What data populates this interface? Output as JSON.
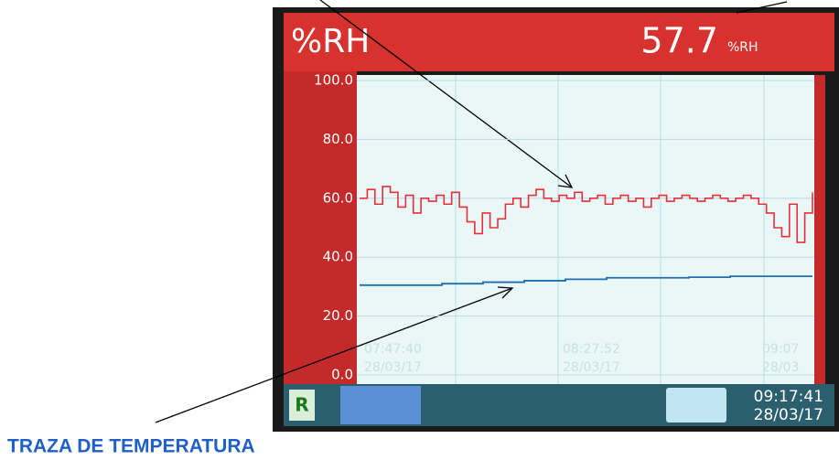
{
  "chart_data": {
    "type": "line",
    "title": "%RH",
    "current_value": 57.7,
    "unit": "%RH",
    "ylim": [
      0,
      100
    ],
    "yticks": [
      {
        "value": 0,
        "label": "0.0"
      },
      {
        "value": 20,
        "label": "20.0"
      },
      {
        "value": 40,
        "label": "40.0"
      },
      {
        "value": 60,
        "label": "60.0"
      },
      {
        "value": 80,
        "label": "80.0"
      },
      {
        "value": 100,
        "label": "100.0"
      }
    ],
    "grid": true,
    "x_labels": [
      {
        "time": "07:47:40",
        "date": "28/03/17"
      },
      {
        "time": "08:27:52",
        "date": "28/03/17"
      },
      {
        "time": "09:07",
        "date": "28/03"
      }
    ],
    "series": [
      {
        "color": "#e8303a",
        "values": [
          60,
          63,
          58,
          64,
          62,
          57,
          61,
          55,
          60,
          59,
          61,
          58,
          62,
          57,
          52,
          48,
          55,
          50,
          53,
          58,
          60,
          57,
          61,
          63,
          60,
          59,
          61,
          60,
          62,
          59,
          60,
          61,
          58,
          60,
          61,
          59,
          60,
          57,
          60,
          61,
          59,
          60,
          61,
          60,
          59,
          60,
          61,
          60,
          59,
          60,
          61,
          60,
          58,
          55,
          50,
          47,
          58,
          45,
          55,
          62
        ]
      },
      {
        "color": "#1f6fb0",
        "values": [
          30.5,
          30.5,
          31,
          31.5,
          32,
          32.5,
          33,
          33,
          33.2,
          33.5,
          33.5,
          33.5
        ]
      }
    ],
    "footer_time": "09:17:41",
    "footer_date": "28/03/17",
    "footer_icon": "R",
    "annotation": "TRAZA DE TEMPERATURA"
  }
}
